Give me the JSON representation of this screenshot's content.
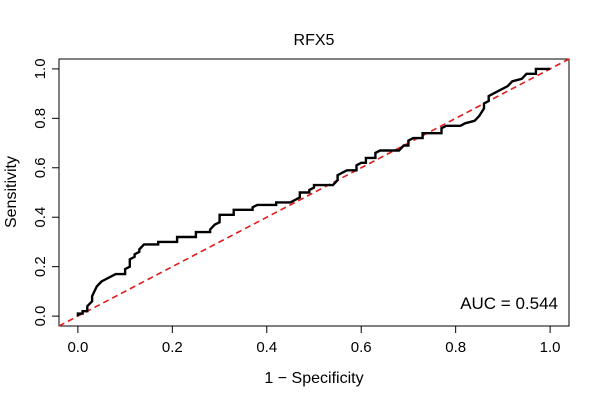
{
  "chart_data": {
    "type": "line",
    "title": "RFX5",
    "xlabel": "1 − Specificity",
    "ylabel": "Sensitivity",
    "xlim": [
      -0.04,
      1.04
    ],
    "ylim": [
      -0.04,
      1.04
    ],
    "x_ticks": [
      0.0,
      0.2,
      0.4,
      0.6,
      0.8,
      1.0
    ],
    "x_tick_labels": [
      "0.0",
      "0.2",
      "0.4",
      "0.6",
      "0.8",
      "1.0"
    ],
    "y_ticks": [
      0.0,
      0.2,
      0.4,
      0.6,
      0.8,
      1.0
    ],
    "y_tick_labels": [
      "0.0",
      "0.2",
      "0.4",
      "0.6",
      "0.8",
      "1.0"
    ],
    "annotation": "AUC = 0.544",
    "grid": false,
    "series": [
      {
        "name": "ROC curve",
        "color": "#000000",
        "points": [
          [
            0.0,
            0.0
          ],
          [
            0.0,
            0.01
          ],
          [
            0.01,
            0.01
          ],
          [
            0.01,
            0.02
          ],
          [
            0.02,
            0.02
          ],
          [
            0.02,
            0.04
          ],
          [
            0.03,
            0.06
          ],
          [
            0.03,
            0.08
          ],
          [
            0.035,
            0.1
          ],
          [
            0.04,
            0.12
          ],
          [
            0.045,
            0.13
          ],
          [
            0.05,
            0.14
          ],
          [
            0.06,
            0.15
          ],
          [
            0.07,
            0.16
          ],
          [
            0.08,
            0.17
          ],
          [
            0.1,
            0.17
          ],
          [
            0.1,
            0.19
          ],
          [
            0.11,
            0.2
          ],
          [
            0.11,
            0.23
          ],
          [
            0.12,
            0.24
          ],
          [
            0.12,
            0.25
          ],
          [
            0.13,
            0.26
          ],
          [
            0.13,
            0.27
          ],
          [
            0.14,
            0.29
          ],
          [
            0.17,
            0.29
          ],
          [
            0.17,
            0.3
          ],
          [
            0.21,
            0.3
          ],
          [
            0.21,
            0.32
          ],
          [
            0.25,
            0.32
          ],
          [
            0.25,
            0.34
          ],
          [
            0.28,
            0.34
          ],
          [
            0.28,
            0.35
          ],
          [
            0.29,
            0.37
          ],
          [
            0.3,
            0.38
          ],
          [
            0.3,
            0.41
          ],
          [
            0.33,
            0.41
          ],
          [
            0.33,
            0.43
          ],
          [
            0.37,
            0.43
          ],
          [
            0.37,
            0.44
          ],
          [
            0.38,
            0.45
          ],
          [
            0.42,
            0.45
          ],
          [
            0.42,
            0.46
          ],
          [
            0.45,
            0.46
          ],
          [
            0.46,
            0.47
          ],
          [
            0.47,
            0.48
          ],
          [
            0.47,
            0.5
          ],
          [
            0.49,
            0.5
          ],
          [
            0.49,
            0.51
          ],
          [
            0.5,
            0.52
          ],
          [
            0.5,
            0.53
          ],
          [
            0.54,
            0.53
          ],
          [
            0.55,
            0.55
          ],
          [
            0.55,
            0.57
          ],
          [
            0.56,
            0.58
          ],
          [
            0.57,
            0.59
          ],
          [
            0.59,
            0.59
          ],
          [
            0.59,
            0.61
          ],
          [
            0.6,
            0.62
          ],
          [
            0.61,
            0.62
          ],
          [
            0.61,
            0.64
          ],
          [
            0.63,
            0.64
          ],
          [
            0.63,
            0.66
          ],
          [
            0.64,
            0.67
          ],
          [
            0.68,
            0.67
          ],
          [
            0.69,
            0.69
          ],
          [
            0.7,
            0.69
          ],
          [
            0.7,
            0.71
          ],
          [
            0.71,
            0.72
          ],
          [
            0.73,
            0.72
          ],
          [
            0.73,
            0.74
          ],
          [
            0.77,
            0.74
          ],
          [
            0.77,
            0.76
          ],
          [
            0.78,
            0.77
          ],
          [
            0.81,
            0.77
          ],
          [
            0.82,
            0.78
          ],
          [
            0.84,
            0.79
          ],
          [
            0.85,
            0.81
          ],
          [
            0.86,
            0.84
          ],
          [
            0.86,
            0.86
          ],
          [
            0.87,
            0.87
          ],
          [
            0.87,
            0.89
          ],
          [
            0.88,
            0.9
          ],
          [
            0.89,
            0.91
          ],
          [
            0.91,
            0.93
          ],
          [
            0.92,
            0.95
          ],
          [
            0.94,
            0.96
          ],
          [
            0.95,
            0.98
          ],
          [
            0.97,
            0.98
          ],
          [
            0.97,
            1.0
          ],
          [
            1.0,
            1.0
          ]
        ]
      },
      {
        "name": "chance diagonal",
        "color": "#e31a1c",
        "dashed": true,
        "points": [
          [
            -0.04,
            -0.04
          ],
          [
            1.04,
            1.04
          ]
        ]
      }
    ]
  }
}
